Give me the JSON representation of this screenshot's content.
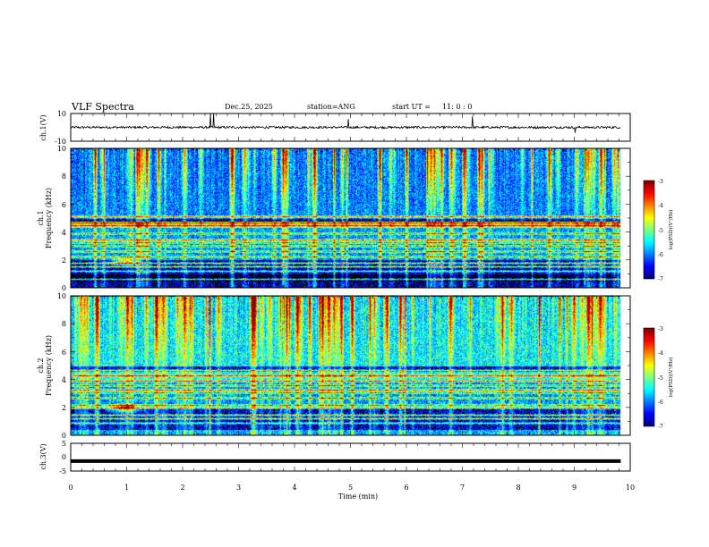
{
  "header": {
    "title": "VLF Spectra",
    "date": "Dec.25, 2025",
    "station": "station=ANG",
    "start_label": "start  UT =",
    "start_time": "11: 0  : 0"
  },
  "chart_data": [
    {
      "type": "line",
      "name": "ch1-waveform",
      "ylabel": "ch.1(V)",
      "ylim": [
        -10,
        10
      ],
      "yticks": [
        "10",
        "-10"
      ],
      "baseline": 0,
      "noise_amplitude": 0.8,
      "spikes": [
        {
          "t": 2.5,
          "value": 10
        },
        {
          "t": 2.55,
          "value": 10
        },
        {
          "t": 4.96,
          "value": 6
        },
        {
          "t": 7.18,
          "value": 8
        },
        {
          "t": 9.02,
          "value": -4
        }
      ],
      "xlim": [
        0,
        10
      ],
      "data_end": 9.83
    },
    {
      "type": "heatmap",
      "name": "ch1-spectrogram",
      "ylabel": "ch.1",
      "ylabel2": "Frequency (kHz)",
      "ylim": [
        0,
        10
      ],
      "yticks": [
        "0",
        "2",
        "4",
        "6",
        "8",
        "10"
      ],
      "xlim": [
        0,
        10
      ],
      "data_end": 9.83,
      "background_log_psd": -6.7,
      "band_boost": [
        {
          "fmin": 5.0,
          "fmax": 10.0,
          "boost": 0.7
        },
        {
          "fmin": 4.3,
          "fmax": 4.8,
          "boost": 1.6
        },
        {
          "fmin": 2.0,
          "fmax": 4.3,
          "boost": 0.8
        },
        {
          "fmin": 0.5,
          "fmax": 1.0,
          "boost": -0.4
        }
      ],
      "tones_khz": [
        0.65,
        1.2,
        1.55,
        1.8,
        2.25,
        2.6,
        3.0,
        3.25,
        3.45,
        3.9,
        4.5,
        4.65,
        5.1
      ],
      "hiss_spot": {
        "t": 0.95,
        "f": 1.9,
        "radius": 0.35
      },
      "sferic_rate_per_min": 7.5
    },
    {
      "type": "heatmap",
      "name": "ch2-spectrogram",
      "ylabel": "ch.2",
      "ylabel2": "Frequency (kHz)",
      "ylim": [
        0,
        10
      ],
      "yticks": [
        "0",
        "2",
        "4",
        "6",
        "8",
        "10"
      ],
      "xlim": [
        0,
        10
      ],
      "data_end": 9.83,
      "background_log_psd": -6.6,
      "band_boost": [
        {
          "fmin": 5.0,
          "fmax": 10.0,
          "boost": 1.1
        },
        {
          "fmin": 4.0,
          "fmax": 4.6,
          "boost": 1.2
        },
        {
          "fmin": 2.0,
          "fmax": 4.0,
          "boost": 0.7
        },
        {
          "fmin": 0.0,
          "fmax": 0.4,
          "boost": 0.8
        }
      ],
      "tones_khz": [
        0.9,
        1.2,
        1.5,
        2.0,
        2.2,
        2.7,
        3.1,
        3.3,
        3.6,
        3.9,
        4.3,
        4.7
      ],
      "hiss_spot": {
        "t": 0.95,
        "f": 1.95,
        "radius": 0.4
      },
      "sferic_rate_per_min": 8.0
    },
    {
      "type": "line",
      "name": "ch3-waveform",
      "ylabel": "ch.3(V)",
      "ylim": [
        -5,
        5
      ],
      "yticks": [
        "5",
        "0",
        "-5"
      ],
      "constant_value": -1.4,
      "xlim": [
        0,
        10
      ],
      "data_end": 9.83
    }
  ],
  "x_axis": {
    "label": "Time (min)",
    "ticks": [
      "0",
      "1",
      "2",
      "3",
      "4",
      "5",
      "6",
      "7",
      "8",
      "9",
      "10"
    ]
  },
  "colorbars": [
    {
      "label": "log(PSD)(V²/Hz)",
      "min": -7,
      "max": -3,
      "ticks": [
        "-3",
        "-4",
        "-5",
        "-6",
        "-7"
      ]
    },
    {
      "label": "log(PSD)(V²/Hz)",
      "min": -7,
      "max": -3,
      "ticks": [
        "-3",
        "-4",
        "-5",
        "-6",
        "-7"
      ]
    }
  ],
  "colors": {
    "axis": "#000000",
    "background": "#ffffff"
  }
}
